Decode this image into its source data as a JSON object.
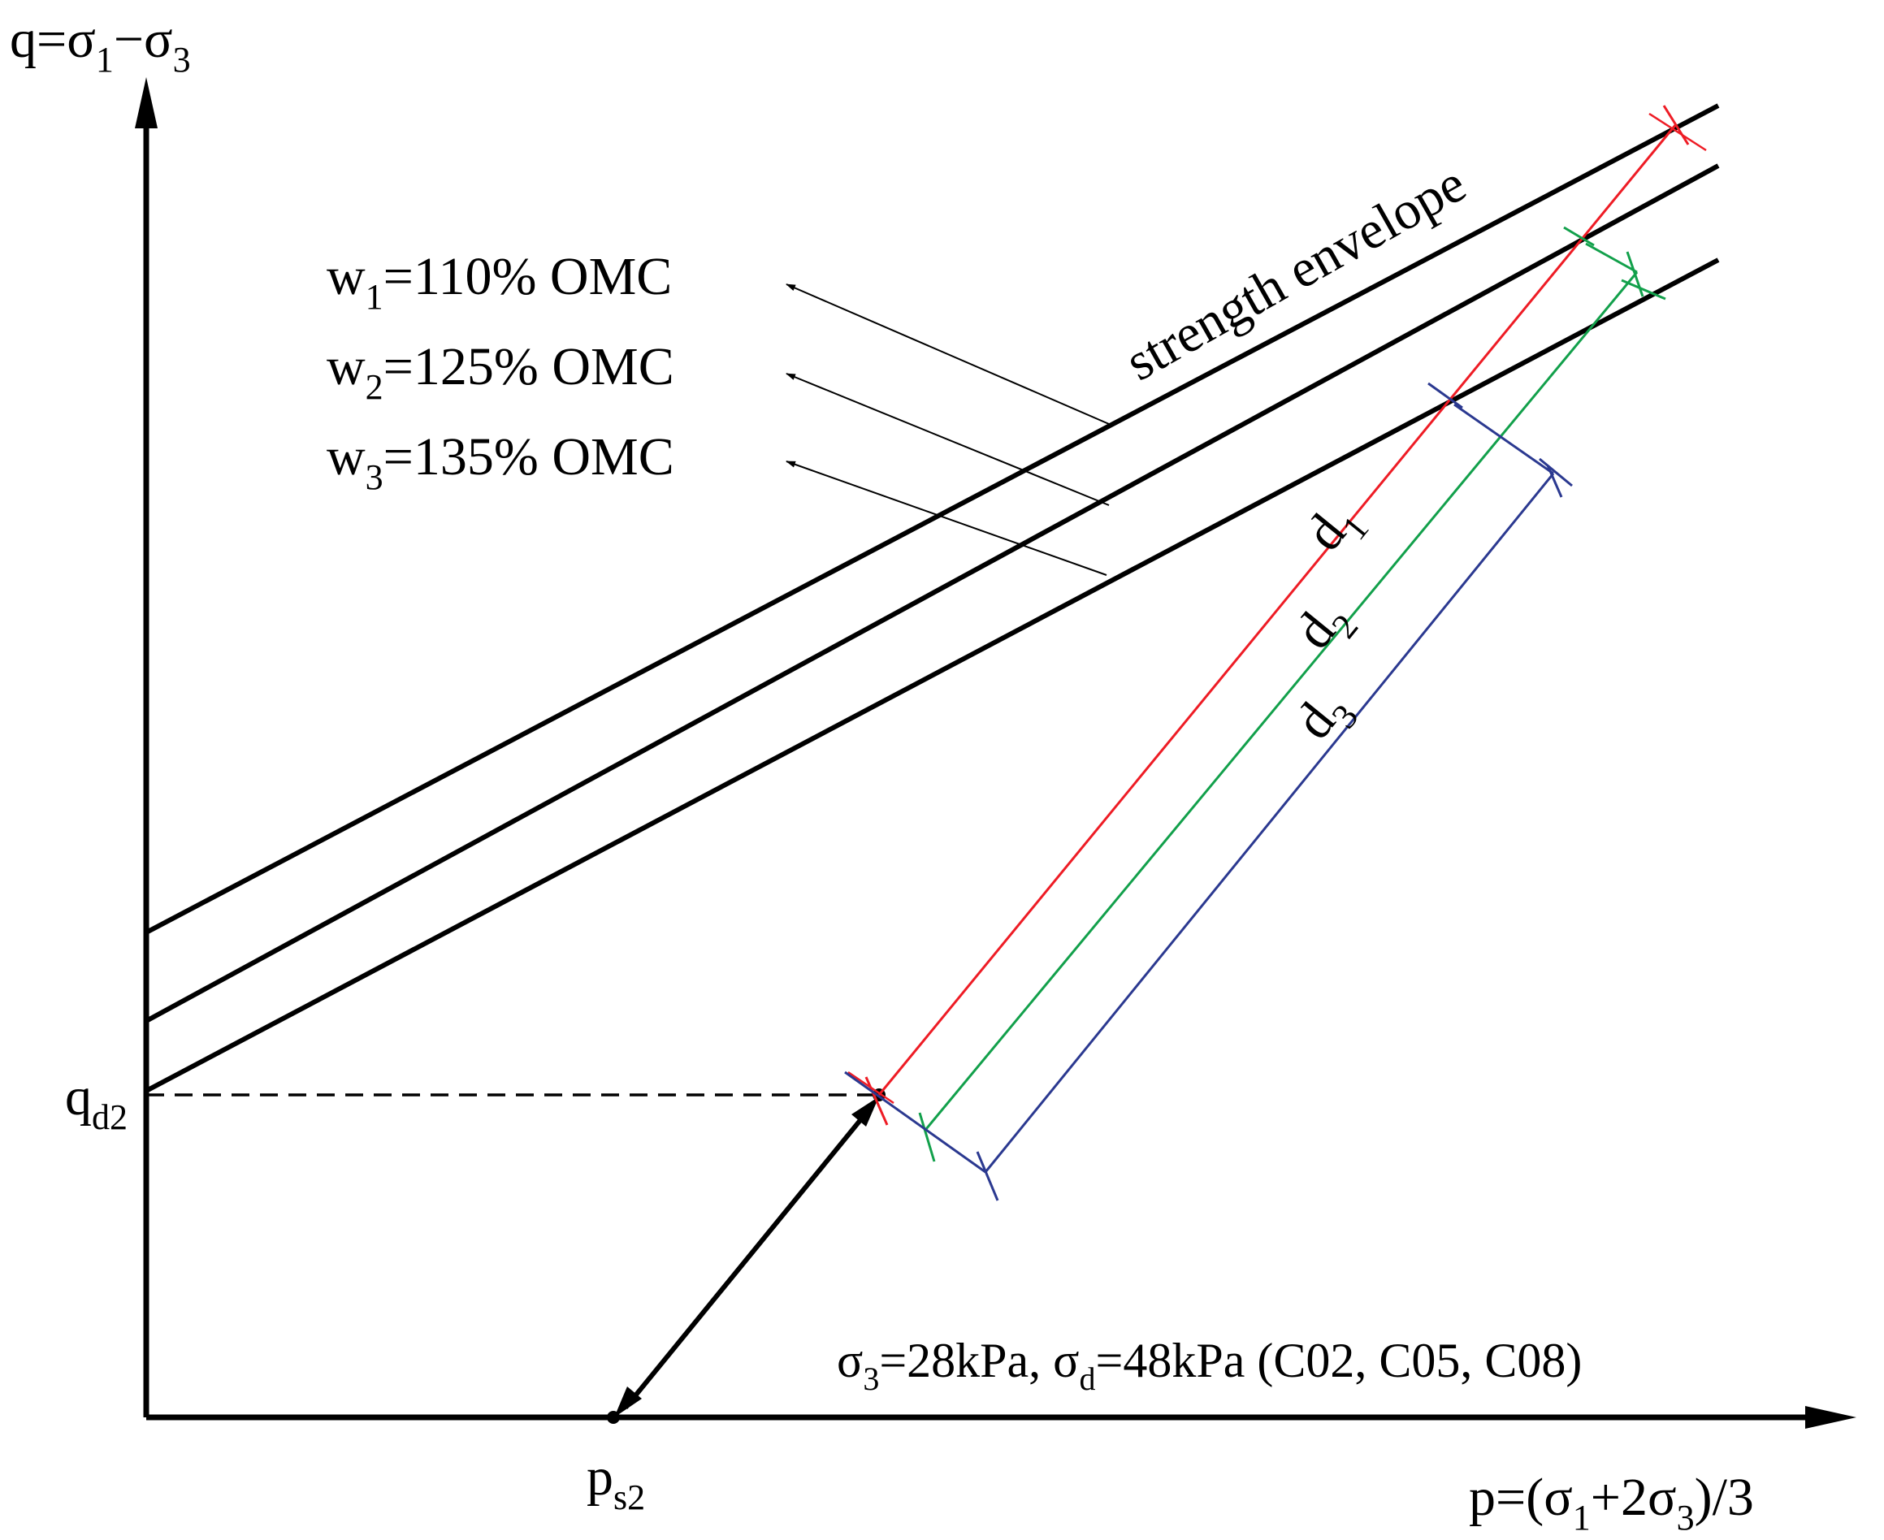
{
  "axes": {
    "y_label": {
      "prefix": "q=σ",
      "s1": "1",
      "mid": "−σ",
      "s3": "3"
    },
    "x_label": {
      "prefix": "p=(σ",
      "s1": "1",
      "mid": "+2σ",
      "s3": "3",
      "suffix": ")/3"
    },
    "q_tick": {
      "main": "q",
      "sub": "d2"
    },
    "p_tick": {
      "main": "p",
      "sub": "s2"
    }
  },
  "envelope_label": "strength envelope",
  "envelopes": [
    {
      "id": "w1",
      "main": "w",
      "sub": "1",
      "rest": "=110% OMC"
    },
    {
      "id": "w2",
      "main": "w",
      "sub": "2",
      "rest": "=125% OMC"
    },
    {
      "id": "w3",
      "main": "w",
      "sub": "3",
      "rest": "=135% OMC"
    }
  ],
  "distances": [
    {
      "id": "d1",
      "main": "d",
      "sub": "1"
    },
    {
      "id": "d2",
      "main": "d",
      "sub": "2"
    },
    {
      "id": "d3",
      "main": "d",
      "sub": "3"
    }
  ],
  "condition": {
    "a": "σ",
    "a_sub": "3",
    "b": "=28kPa, σ",
    "b_sub": "d",
    "c": "=48kPa (C02, C05, C08)"
  },
  "colors": {
    "axis": "#000000",
    "d1": "#ee1c25",
    "d2": "#12a04b",
    "d3": "#2b3990"
  }
}
